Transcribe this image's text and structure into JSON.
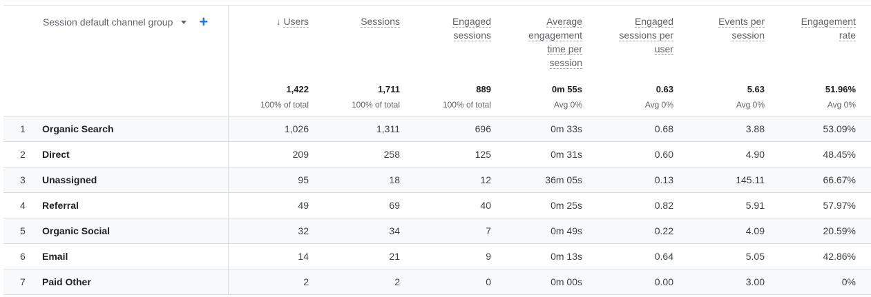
{
  "table": {
    "dimension_header": "Session default channel group",
    "dimension_dropdown_icon": "caret-down-icon",
    "add_dimension_icon": "plus-icon",
    "sort_icon": "arrow-down-icon",
    "columns": [
      {
        "key": "users",
        "label_lines": [
          "Users"
        ],
        "total": "1,422",
        "sub": "100% of total",
        "sorted": true
      },
      {
        "key": "sessions",
        "label_lines": [
          "Sessions"
        ],
        "total": "1,711",
        "sub": "100% of total"
      },
      {
        "key": "engaged_sessions",
        "label_lines": [
          "Engaged",
          "sessions"
        ],
        "total": "889",
        "sub": "100% of total"
      },
      {
        "key": "avg_engagement_time",
        "label_lines": [
          "Average",
          "engagement",
          "time per",
          "session"
        ],
        "total": "0m 55s",
        "sub": "Avg 0%"
      },
      {
        "key": "engaged_sessions_per_user",
        "label_lines": [
          "Engaged",
          "sessions per",
          "user"
        ],
        "total": "0.63",
        "sub": "Avg 0%"
      },
      {
        "key": "events_per_session",
        "label_lines": [
          "Events per",
          "session"
        ],
        "total": "5.63",
        "sub": "Avg 0%"
      },
      {
        "key": "engagement_rate",
        "label_lines": [
          "Engagement",
          "rate"
        ],
        "total": "51.96%",
        "sub": "Avg 0%"
      }
    ],
    "rows": [
      {
        "index": "1",
        "name": "Organic Search",
        "values": [
          "1,026",
          "1,311",
          "696",
          "0m 33s",
          "0.68",
          "3.88",
          "53.09%"
        ]
      },
      {
        "index": "2",
        "name": "Direct",
        "values": [
          "209",
          "258",
          "125",
          "0m 31s",
          "0.60",
          "4.90",
          "48.45%"
        ]
      },
      {
        "index": "3",
        "name": "Unassigned",
        "values": [
          "95",
          "18",
          "12",
          "36m 05s",
          "0.13",
          "145.11",
          "66.67%"
        ]
      },
      {
        "index": "4",
        "name": "Referral",
        "values": [
          "49",
          "69",
          "40",
          "0m 25s",
          "0.82",
          "5.91",
          "57.97%"
        ]
      },
      {
        "index": "5",
        "name": "Organic Social",
        "values": [
          "32",
          "34",
          "7",
          "0m 49s",
          "0.22",
          "4.09",
          "20.59%"
        ]
      },
      {
        "index": "6",
        "name": "Email",
        "values": [
          "14",
          "21",
          "9",
          "0m 13s",
          "0.64",
          "5.05",
          "42.86%"
        ]
      },
      {
        "index": "7",
        "name": "Paid Other",
        "values": [
          "2",
          "2",
          "0",
          "0m 00s",
          "0.00",
          "3.00",
          "0%"
        ]
      }
    ]
  },
  "colors": {
    "accent": "#1a73e8",
    "border": "#dadce0",
    "row_alt": "#f8f9fa",
    "muted_text": "#5f6368"
  }
}
